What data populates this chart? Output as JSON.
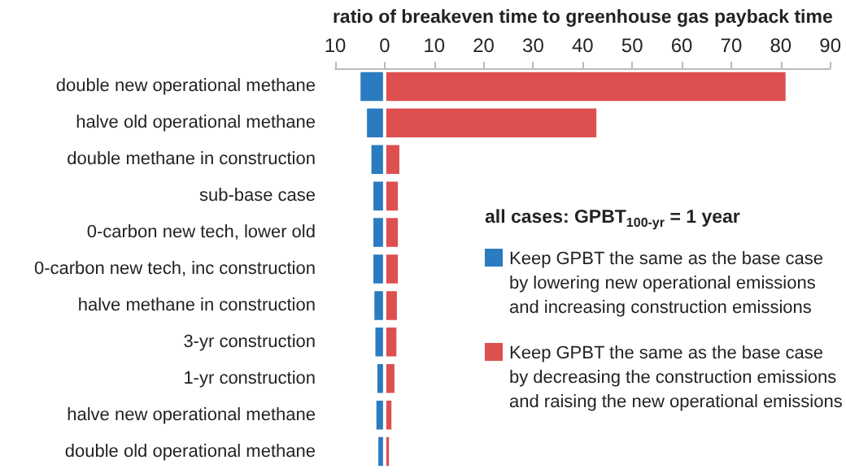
{
  "chart_data": {
    "type": "bar",
    "orientation": "horizontal",
    "stacked": true,
    "xlabel": "ratio of breakeven time to greenhouse gas payback time",
    "categories": [
      "double new operational methane",
      "halve old operational methane",
      "double methane in construction",
      "sub-base case",
      "0-carbon new tech, lower old",
      "0-carbon new tech, inc construction",
      "halve methane in construction",
      "3-yr construction",
      "1-yr construction",
      "halve new operational methane",
      "double old operational methane"
    ],
    "series": [
      {
        "name": "Keep GPBT the same as the base case by lowering new operational emissions and increasing construction emissions",
        "color": "#2a7bbf",
        "values": [
          -5.2,
          -3.9,
          -3.0,
          -2.6,
          -2.6,
          -2.6,
          -2.4,
          -2.2,
          -1.8,
          -2.0,
          -1.6
        ]
      },
      {
        "name": "Keep GPBT the same as the base case by decreasing the construction emissions and raising the new operational emissions",
        "color": "#de4f4f",
        "values": [
          81.3,
          43.1,
          3.3,
          3.0,
          3.0,
          3.0,
          2.8,
          2.7,
          2.3,
          1.7,
          1.2
        ]
      }
    ],
    "xlim": [
      -10,
      90
    ],
    "xticks": [
      {
        "value": -10,
        "label": "10"
      },
      0,
      10,
      20,
      30,
      40,
      50,
      60,
      70,
      80,
      90
    ],
    "annotations": [
      "all cases: GPBT$_{100-yr}$ = 1 year"
    ],
    "legend": "right",
    "grid": false
  }
}
